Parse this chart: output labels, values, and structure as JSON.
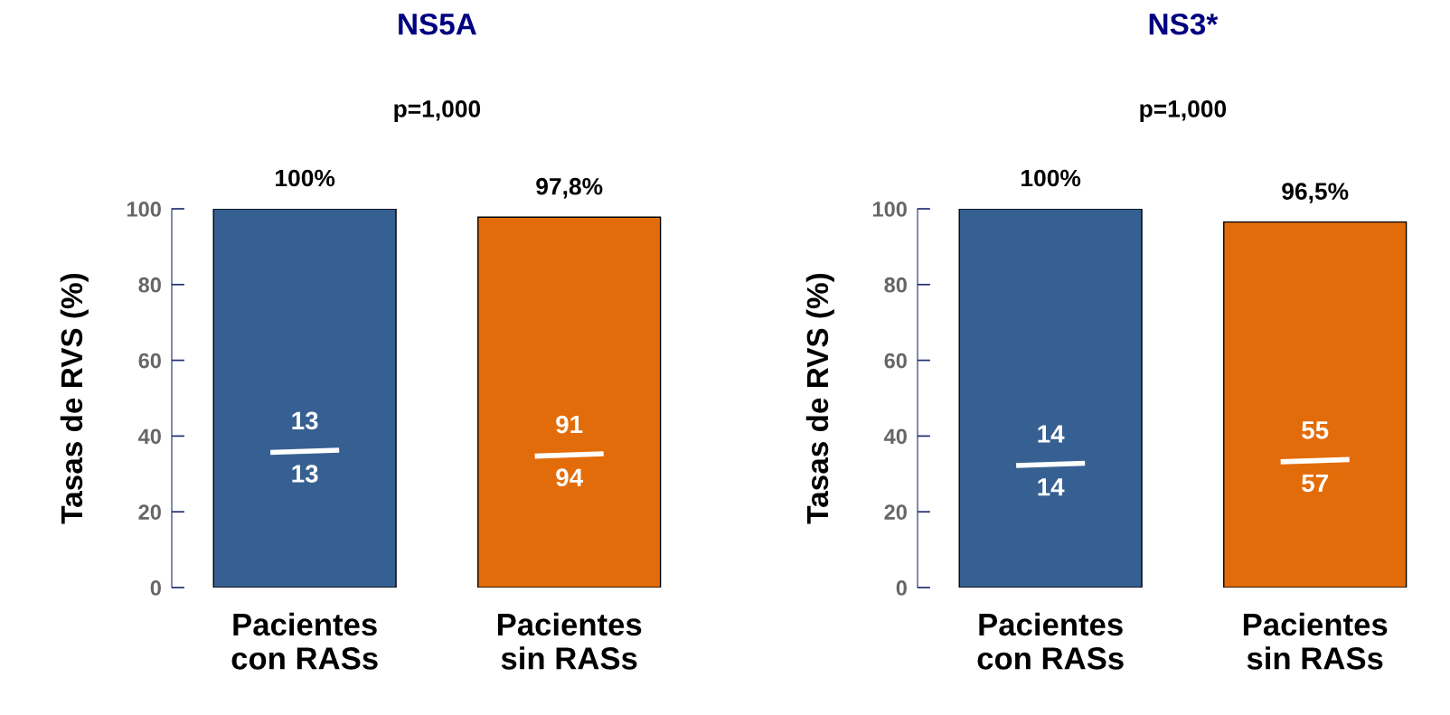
{
  "chart_data": [
    {
      "type": "bar",
      "title": "NS5A",
      "subtitle": "p=1,000",
      "ylabel": "Tasas de RVS (%)",
      "categories": [
        "Pacientes\ncon RASs",
        "Pacientes\nsin RASs"
      ],
      "values": [
        100,
        97.8
      ],
      "colors": [
        "#376092",
        "#e36c0a"
      ],
      "value_labels": [
        "100%",
        "97,8%"
      ],
      "ylim": [
        0,
        100
      ],
      "yticks": [
        0,
        20,
        40,
        60,
        80,
        100
      ],
      "grid": false,
      "annotations": [
        "13",
        "13",
        "91",
        "94"
      ]
    },
    {
      "type": "bar",
      "title": "NS3*",
      "subtitle": "p=1,000",
      "ylabel": "Tasas de RVS (%)",
      "categories": [
        "Pacientes\ncon RASs",
        "Pacientes\nsin RASs"
      ],
      "values": [
        100,
        96.5
      ],
      "colors": [
        "#376092",
        "#e36c0a"
      ],
      "value_labels": [
        "100%",
        "96,5%"
      ],
      "ylim": [
        0,
        100
      ],
      "yticks": [
        0,
        20,
        40,
        60,
        80,
        100
      ],
      "grid": false,
      "annotations": [
        "14",
        "14",
        "55",
        "57"
      ]
    }
  ]
}
